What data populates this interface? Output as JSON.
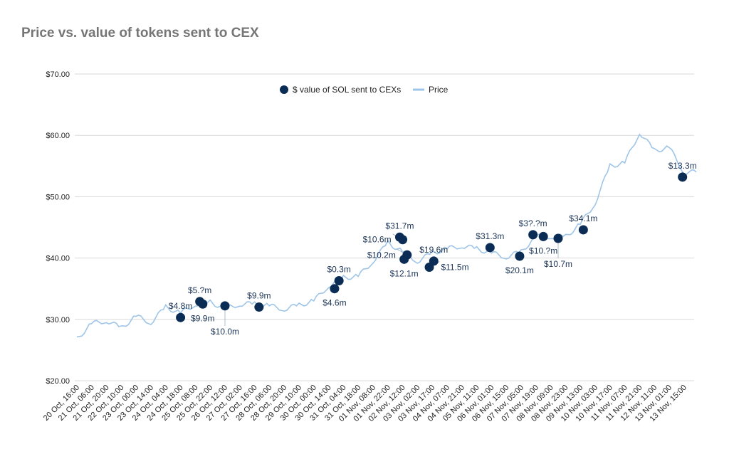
{
  "chart_data": {
    "type": "line",
    "title": "Price vs. value of tokens sent to CEX",
    "legend": {
      "placement": "top",
      "entries": [
        "$ value of SOL sent to CEXs",
        "Price"
      ]
    },
    "grid": true,
    "ylim": [
      20,
      70
    ],
    "yticks": [
      "$20.00",
      "$30.00",
      "$40.00",
      "$50.00",
      "$60.00",
      "$70.00"
    ],
    "ytick_values": [
      20,
      30,
      40,
      50,
      60,
      70
    ],
    "x_categories": [
      "20 Oct, 16:00",
      "21 Oct, 06:00",
      "21 Oct, 20:00",
      "22 Oct, 10:00",
      "23 Oct, 00:00",
      "23 Oct, 14:00",
      "24 Oct, 04:00",
      "24 Oct, 18:00",
      "25 Oct, 08:00",
      "25 Oct, 22:00",
      "26 Oct, 12:00",
      "27 Oct, 02:00",
      "27 Oct, 16:00",
      "28 Oct, 06:00",
      "28 Oct, 20:00",
      "29 Oct, 10:00",
      "30 Oct, 00:00",
      "30 Oct, 14:00",
      "31 Oct, 04:00",
      "31 Oct, 18:00",
      "01 Nov, 08:00",
      "01 Nov, 22:00",
      "02 Nov, 12:00",
      "03 Nov, 02:00",
      "03 Nov, 17:00",
      "04 Nov, 07:00",
      "04 Nov, 21:00",
      "05 Nov, 11:00",
      "06 Nov, 01:00",
      "06 Nov, 15:00",
      "07 Nov, 05:00",
      "07 Nov, 19:00",
      "08 Nov, 09:00",
      "08 Nov, 23:00",
      "09 Nov, 13:00",
      "10 Nov, 03:00",
      "10 Nov, 17:00",
      "11 Nov, 07:00",
      "11 Nov, 21:00",
      "12 Nov, 11:00",
      "13 Nov, 01:00",
      "13 Nov, 15:00"
    ],
    "colors": {
      "price": "#9fc5e8",
      "transfers": "#0b2d55",
      "grid": "#d9d9d9"
    },
    "price_series": {
      "name": "Price",
      "values": [
        26.8,
        29.3,
        29.8,
        28.6,
        30.5,
        29.5,
        32.0,
        31.0,
        32.5,
        32.8,
        31.8,
        32.5,
        32.5,
        32.2,
        31.7,
        32.3,
        33.0,
        35.5,
        36.8,
        37.0,
        39.5,
        42.5,
        41.0,
        39.5,
        40.8,
        41.5,
        42.0,
        41.5,
        40.8,
        40.2,
        41.0,
        43.5,
        43.5,
        43.5,
        45.5,
        49.0,
        55.0,
        55.5,
        60.5,
        57.5,
        58.0,
        54.0
      ]
    },
    "transfer_series": {
      "name": "$ value of SOL sent to CEXs",
      "points": [
        {
          "x": "24 Oct, 18:00",
          "price": 30.3,
          "label": "$4.8m"
        },
        {
          "x": "25 Oct, 08:00",
          "price": 32.9,
          "label": "$5.?m"
        },
        {
          "x": "25 Oct, 08:00",
          "price": 32.5,
          "label": "$9.9m"
        },
        {
          "x": "26 Oct, 12:00",
          "price": 32.2,
          "label": "$10.0m"
        },
        {
          "x": "27 Oct, 16:00",
          "price": 32.0,
          "label": "$9.9m"
        },
        {
          "x": "30 Oct, 14:00",
          "price": 35.0,
          "label": "$4.6m"
        },
        {
          "x": "30 Oct, 14:00",
          "price": 36.3,
          "label": "$0.3m"
        },
        {
          "x": "01 Nov, 22:00",
          "price": 43.4,
          "label": "$31.7m"
        },
        {
          "x": "01 Nov, 22:00",
          "price": 43.0,
          "label": "$10.6m"
        },
        {
          "x": "02 Nov, 12:00",
          "price": 40.5,
          "label": "$10.2m"
        },
        {
          "x": "02 Nov, 12:00",
          "price": 39.8,
          "label": "$12.1m"
        },
        {
          "x": "03 Nov, 02:00",
          "price": 38.5,
          "label": "$11.5m"
        },
        {
          "x": "03 Nov, 17:00",
          "price": 39.5,
          "label": "$19.6m"
        },
        {
          "x": "05 Nov, 11:00",
          "price": 41.7,
          "label": "$31.3m"
        },
        {
          "x": "06 Nov, 15:00",
          "price": 40.3,
          "label": "$20.1m"
        },
        {
          "x": "07 Nov, 05:00",
          "price": 43.8,
          "label": "$3?.?m"
        },
        {
          "x": "07 Nov, 19:00",
          "price": 43.5,
          "label": "$10.?m"
        },
        {
          "x": "08 Nov, 09:00",
          "price": 43.2,
          "label": "$10.7m"
        },
        {
          "x": "09 Nov, 13:00",
          "price": 44.6,
          "label": "$34.1m"
        },
        {
          "x": "13 Nov, 01:00",
          "price": 53.2,
          "label": "$13.3m"
        }
      ]
    }
  }
}
